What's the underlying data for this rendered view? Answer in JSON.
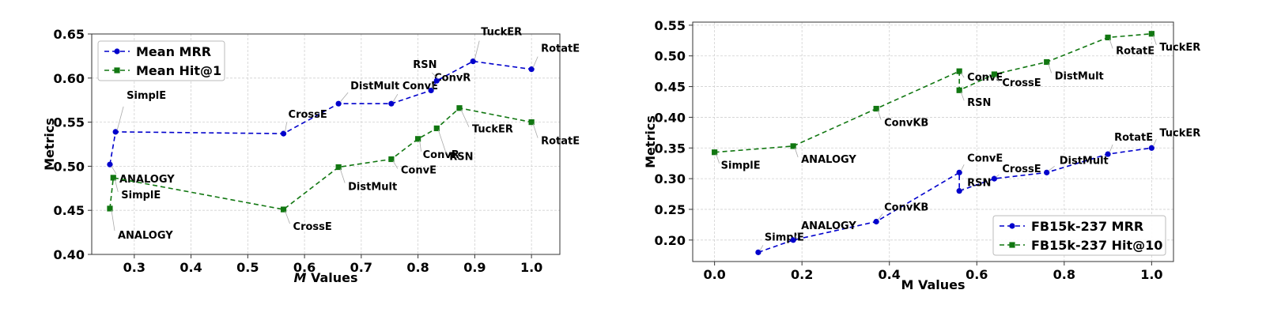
{
  "chart_data": [
    {
      "type": "line",
      "xlabel_italic": "M",
      "xlabel_rest": " Values",
      "ylabel": "Metrics",
      "xlim": [
        0.225,
        1.05
      ],
      "ylim": [
        0.4,
        0.65
      ],
      "xticks": [
        "0.3",
        "0.4",
        "0.5",
        "0.6",
        "0.7",
        "0.8",
        "0.9",
        "1.0"
      ],
      "xtick_values": [
        0.3,
        0.4,
        0.5,
        0.6,
        0.7,
        0.8,
        0.9,
        1.0
      ],
      "yticks": [
        "0.40",
        "0.45",
        "0.50",
        "0.55",
        "0.60",
        "0.65"
      ],
      "ytick_values": [
        0.4,
        0.45,
        0.5,
        0.55,
        0.6,
        0.65
      ],
      "grid": true,
      "legend_position": "top-left",
      "series": [
        {
          "name": "Mean MRR",
          "color": "#0000cc",
          "marker": "circle",
          "points": [
            {
              "x": 0.257,
              "y": 0.502,
              "label": "ANALOGY"
            },
            {
              "x": 0.267,
              "y": 0.539,
              "label": "SimplE"
            },
            {
              "x": 0.563,
              "y": 0.537,
              "label": "CrossE"
            },
            {
              "x": 0.66,
              "y": 0.571,
              "label": "DistMult"
            },
            {
              "x": 0.753,
              "y": 0.571,
              "label": "ConvE"
            },
            {
              "x": 0.823,
              "y": 0.586,
              "label": "ConvR"
            },
            {
              "x": 0.833,
              "y": 0.597,
              "label": "RSN"
            },
            {
              "x": 0.897,
              "y": 0.619,
              "label": "TuckER"
            },
            {
              "x": 1.0,
              "y": 0.61,
              "label": "RotatE"
            }
          ]
        },
        {
          "name": "Mean Hit@1",
          "color": "#117711",
          "marker": "square",
          "points": [
            {
              "x": 0.257,
              "y": 0.452,
              "label": "ANALOGY"
            },
            {
              "x": 0.263,
              "y": 0.487,
              "label": "SimplE"
            },
            {
              "x": 0.563,
              "y": 0.451,
              "label": "CrossE"
            },
            {
              "x": 0.66,
              "y": 0.499,
              "label": "DistMult"
            },
            {
              "x": 0.753,
              "y": 0.508,
              "label": "ConvE"
            },
            {
              "x": 0.8,
              "y": 0.531,
              "label": "ConvR"
            },
            {
              "x": 0.833,
              "y": 0.543,
              "label": "RSN"
            },
            {
              "x": 0.873,
              "y": 0.566,
              "label": "TuckER"
            },
            {
              "x": 1.0,
              "y": 0.55,
              "label": "RotatE"
            }
          ]
        }
      ]
    },
    {
      "type": "line",
      "xlabel_italic": "",
      "xlabel_rest": "M Values",
      "ylabel": "Metrics",
      "xlim": [
        -0.05,
        1.05
      ],
      "ylim": [
        0.165,
        0.555
      ],
      "xticks": [
        "0.0",
        "0.2",
        "0.4",
        "0.6",
        "0.8",
        "1.0"
      ],
      "xtick_values": [
        0.0,
        0.2,
        0.4,
        0.6,
        0.8,
        1.0
      ],
      "yticks": [
        "0.20",
        "0.25",
        "0.30",
        "0.35",
        "0.40",
        "0.45",
        "0.50",
        "0.55"
      ],
      "ytick_values": [
        0.2,
        0.25,
        0.3,
        0.35,
        0.4,
        0.45,
        0.5,
        0.55
      ],
      "grid": true,
      "legend_position": "bottom-right",
      "series": [
        {
          "name": "FB15k-237 MRR",
          "color": "#0000cc",
          "marker": "circle",
          "points": [
            {
              "x": 0.1,
              "y": 0.18,
              "label": "SimplE"
            },
            {
              "x": 0.18,
              "y": 0.2,
              "label": "ANALOGY"
            },
            {
              "x": 0.37,
              "y": 0.23,
              "label": "ConvKB"
            },
            {
              "x": 0.56,
              "y": 0.31,
              "label": "ConvE"
            },
            {
              "x": 0.56,
              "y": 0.28,
              "label": "RSN"
            },
            {
              "x": 0.64,
              "y": 0.3,
              "label": "CrossE"
            },
            {
              "x": 0.76,
              "y": 0.31,
              "label": "DistMult"
            },
            {
              "x": 0.9,
              "y": 0.34,
              "label": "RotatE"
            },
            {
              "x": 1.0,
              "y": 0.35,
              "label": "TuckER"
            }
          ]
        },
        {
          "name": "FB15k-237 Hit@10",
          "color": "#117711",
          "marker": "square",
          "points": [
            {
              "x": 0.0,
              "y": 0.343,
              "label": "SimplE"
            },
            {
              "x": 0.18,
              "y": 0.353,
              "label": "ANALOGY"
            },
            {
              "x": 0.37,
              "y": 0.414,
              "label": "ConvKB"
            },
            {
              "x": 0.56,
              "y": 0.475,
              "label": "ConvE"
            },
            {
              "x": 0.56,
              "y": 0.444,
              "label": "RSN"
            },
            {
              "x": 0.64,
              "y": 0.47,
              "label": "CrossE"
            },
            {
              "x": 0.76,
              "y": 0.49,
              "label": "DistMult"
            },
            {
              "x": 0.9,
              "y": 0.53,
              "label": "RotatE"
            },
            {
              "x": 1.0,
              "y": 0.536,
              "label": "TuckER"
            }
          ]
        }
      ]
    }
  ]
}
